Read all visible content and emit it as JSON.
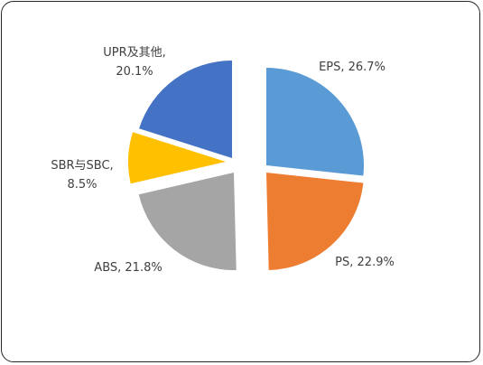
{
  "chart_data": {
    "type": "pie",
    "exploded": true,
    "start_angle": "12 o'clock",
    "direction": "clockwise",
    "legend": "none",
    "slices": [
      {
        "name": "EPS",
        "value": 26.7,
        "label": "EPS, 26.7%",
        "color": "#5B9BD5"
      },
      {
        "name": "PS",
        "value": 22.9,
        "label": "PS, 22.9%",
        "color": "#ED7D31"
      },
      {
        "name": "ABS",
        "value": 21.8,
        "label": "ABS, 21.8%",
        "color": "#A5A5A5"
      },
      {
        "name": "SBR与SBC",
        "value": 8.5,
        "label_lines": [
          "SBR与SBC,",
          "8.5%"
        ],
        "color": "#FFC000"
      },
      {
        "name": "UPR及其他",
        "value": 20.1,
        "label_lines": [
          "UPR及其他,",
          "20.1%"
        ],
        "color": "#4472C4"
      }
    ]
  }
}
